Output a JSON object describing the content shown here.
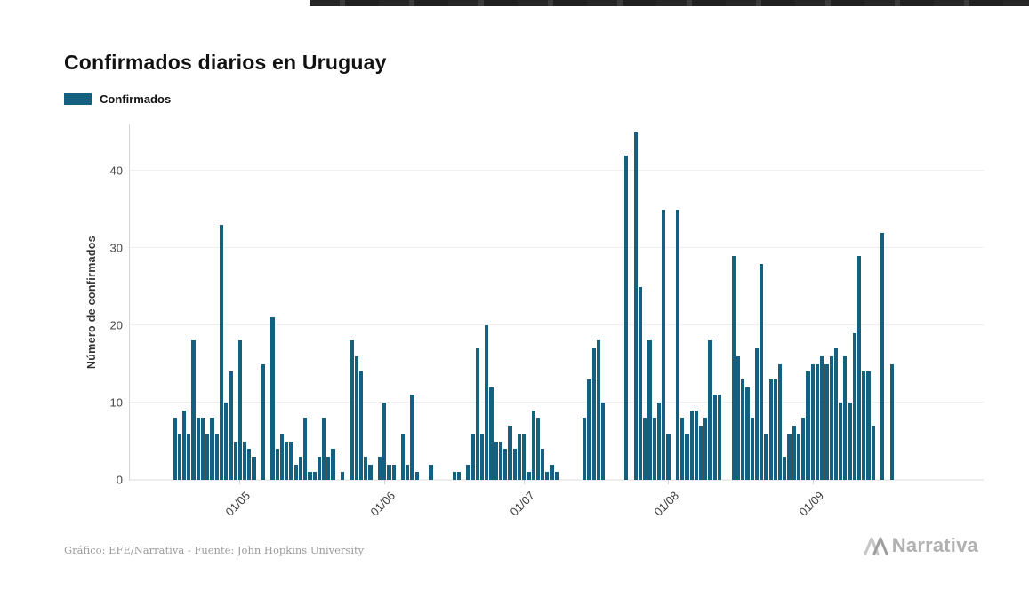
{
  "page": {
    "title": "Confirmados diarios en Uruguay",
    "caption": "Gráfico: EFE/Narrativa - Fuente: John Hopkins University",
    "brand": "Narrativa"
  },
  "legend": {
    "label": "Confirmados",
    "color": "#15607F"
  },
  "chart_data": {
    "type": "bar",
    "title": "Confirmados diarios en Uruguay",
    "series_name": "Confirmados",
    "xlabel": "",
    "ylabel": "Número de confirmados",
    "bar_color": "#15607F",
    "ylim": [
      0,
      46
    ],
    "yticks": [
      0,
      10,
      20,
      30,
      40
    ],
    "grid": true,
    "legend_position": "top-left",
    "x_tick_labels": [
      "01/05",
      "01/06",
      "01/07",
      "01/08",
      "01/09"
    ],
    "x_tick_indices": [
      14,
      45,
      75,
      106,
      137
    ],
    "values": [
      8,
      6,
      9,
      6,
      18,
      8,
      8,
      6,
      8,
      6,
      33,
      10,
      14,
      5,
      18,
      5,
      4,
      3,
      0,
      15,
      0,
      21,
      4,
      6,
      5,
      5,
      2,
      3,
      8,
      1,
      1,
      3,
      8,
      3,
      4,
      0,
      1,
      0,
      18,
      16,
      14,
      3,
      2,
      0,
      3,
      10,
      2,
      2,
      0,
      6,
      2,
      11,
      1,
      0,
      0,
      2,
      0,
      0,
      0,
      0,
      1,
      1,
      0,
      2,
      6,
      17,
      6,
      20,
      12,
      5,
      5,
      4,
      7,
      4,
      6,
      6,
      1,
      9,
      8,
      4,
      1,
      2,
      1,
      0,
      0,
      0,
      0,
      0,
      8,
      13,
      17,
      18,
      10,
      0,
      0,
      0,
      0,
      42,
      0,
      45,
      25,
      8,
      18,
      8,
      10,
      35,
      6,
      0,
      35,
      8,
      6,
      9,
      9,
      7,
      8,
      18,
      11,
      11,
      0,
      0,
      29,
      16,
      13,
      12,
      8,
      17,
      28,
      6,
      13,
      13,
      15,
      3,
      6,
      7,
      6,
      8,
      14,
      15,
      15,
      16,
      15,
      16,
      17,
      10,
      16,
      10,
      19,
      29,
      14,
      14,
      7,
      0,
      32,
      0,
      15
    ]
  }
}
